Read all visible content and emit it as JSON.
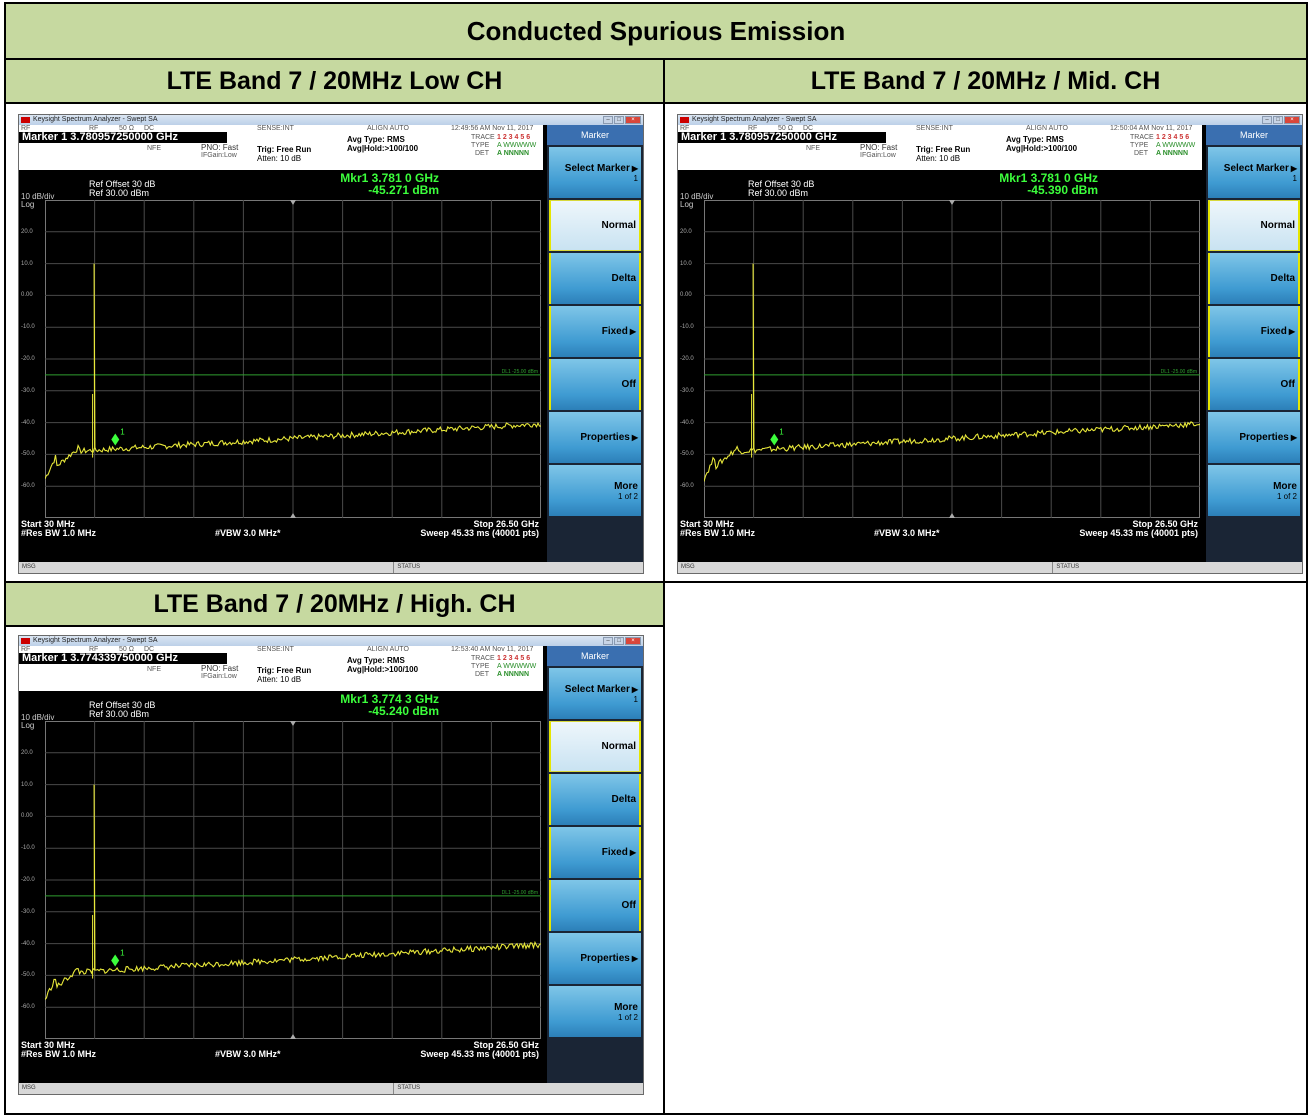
{
  "report_title": "Conducted Spurious Emission",
  "panels": [
    {
      "header": "LTE Band 7 / 20MHz Low CH",
      "sa": {
        "window_title": "Keysight Spectrum Analyzer - Swept SA",
        "rf": "RF",
        "impedance": "50 Ω",
        "coupling": "DC",
        "sense": "SENSE:INT",
        "align": "ALIGN AUTO",
        "timestamp": "12:49:56 AM Nov 11, 2017",
        "marker_line": "Marker 1 3.780957250000 GHz",
        "nfe": "NFE",
        "pno": "PNO: Fast",
        "ifgain": "IFGain:Low",
        "trig": "Trig: Free Run",
        "atten": "Atten: 10 dB",
        "avg_type": "Avg Type: RMS",
        "avg_hold": "Avg|Hold:>100/100",
        "trace_label": "TRACE",
        "type_label": "TYPE",
        "det_label": "DET",
        "trace_nums": "1 2 3 4 5 6",
        "type_vals": "A WWWWW",
        "det_vals": "A NNNNN",
        "ref_offset": "Ref Offset 30 dB",
        "scale": "10 dB/div",
        "ref_level": "Ref 30.00 dBm",
        "log": "Log",
        "mkr_freq": "Mkr1 3.781 0 GHz",
        "mkr_amp": "-45.271 dBm",
        "dl_label": "DL1 -25.00 dBm",
        "y_ticks": [
          "20.0",
          "10.0",
          "0.00",
          "-10.0",
          "-20.0",
          "-30.0",
          "-40.0",
          "-50.0",
          "-60.0"
        ],
        "start": "Start 30 MHz",
        "rbw": "#Res BW 1.0 MHz",
        "vbw": "#VBW 3.0 MHz*",
        "stop": "Stop 26.50 GHz",
        "sweep": "Sweep  45.33 ms (40001 pts)",
        "status_left": "MSG",
        "status_mid": "STATUS",
        "menu_title": "Marker",
        "menu": [
          {
            "label": "Select Marker",
            "sub": "1"
          },
          {
            "label": "Normal",
            "sub": ""
          },
          {
            "label": "Delta",
            "sub": ""
          },
          {
            "label": "Fixed",
            "sub": ""
          },
          {
            "label": "Off",
            "sub": ""
          },
          {
            "label": "Properties",
            "sub": ""
          },
          {
            "label": "More",
            "sub": "1 of 2"
          }
        ]
      }
    },
    {
      "header": "LTE Band 7 / 20MHz / Mid. CH",
      "sa": {
        "window_title": "Keysight Spectrum Analyzer - Swept SA",
        "rf": "RF",
        "impedance": "50 Ω",
        "coupling": "DC",
        "sense": "SENSE:INT",
        "align": "ALIGN AUTO",
        "timestamp": "12:50:04 AM Nov 11, 2017",
        "marker_line": "Marker 1 3.780957250000 GHz",
        "nfe": "NFE",
        "pno": "PNO: Fast",
        "ifgain": "IFGain:Low",
        "trig": "Trig: Free Run",
        "atten": "Atten: 10 dB",
        "avg_type": "Avg Type: RMS",
        "avg_hold": "Avg|Hold:>100/100",
        "trace_label": "TRACE",
        "type_label": "TYPE",
        "det_label": "DET",
        "trace_nums": "1 2 3 4 5 6",
        "type_vals": "A WWWWW",
        "det_vals": "A NNNNN",
        "ref_offset": "Ref Offset 30 dB",
        "scale": "10 dB/div",
        "ref_level": "Ref 30.00 dBm",
        "log": "Log",
        "mkr_freq": "Mkr1 3.781 0 GHz",
        "mkr_amp": "-45.390 dBm",
        "dl_label": "DL1 -25.00 dBm",
        "y_ticks": [
          "20.0",
          "10.0",
          "0.00",
          "-10.0",
          "-20.0",
          "-30.0",
          "-40.0",
          "-50.0",
          "-60.0"
        ],
        "start": "Start 30 MHz",
        "rbw": "#Res BW 1.0 MHz",
        "vbw": "#VBW 3.0 MHz*",
        "stop": "Stop 26.50 GHz",
        "sweep": "Sweep  45.33 ms (40001 pts)",
        "status_left": "MSG",
        "status_mid": "STATUS",
        "menu_title": "Marker",
        "menu": [
          {
            "label": "Select Marker",
            "sub": "1"
          },
          {
            "label": "Normal",
            "sub": ""
          },
          {
            "label": "Delta",
            "sub": ""
          },
          {
            "label": "Fixed",
            "sub": ""
          },
          {
            "label": "Off",
            "sub": ""
          },
          {
            "label": "Properties",
            "sub": ""
          },
          {
            "label": "More",
            "sub": "1 of 2"
          }
        ]
      }
    },
    {
      "header": "LTE Band 7 / 20MHz / High. CH",
      "sa": {
        "window_title": "Keysight Spectrum Analyzer - Swept SA",
        "rf": "RF",
        "impedance": "50 Ω",
        "coupling": "DC",
        "sense": "SENSE:INT",
        "align": "ALIGN AUTO",
        "timestamp": "12:53:40 AM Nov 11, 2017",
        "marker_line": "Marker 1 3.774339750000 GHz",
        "nfe": "NFE",
        "pno": "PNO: Fast",
        "ifgain": "IFGain:Low",
        "trig": "Trig: Free Run",
        "atten": "Atten: 10 dB",
        "avg_type": "Avg Type: RMS",
        "avg_hold": "Avg|Hold:>100/100",
        "trace_label": "TRACE",
        "type_label": "TYPE",
        "det_label": "DET",
        "trace_nums": "1 2 3 4 5 6",
        "type_vals": "A WWWWW",
        "det_vals": "A NNNNN",
        "ref_offset": "Ref Offset 30 dB",
        "scale": "10 dB/div",
        "ref_level": "Ref 30.00 dBm",
        "log": "Log",
        "mkr_freq": "Mkr1 3.774 3 GHz",
        "mkr_amp": "-45.240 dBm",
        "dl_label": "DL1 -25.00 dBm",
        "y_ticks": [
          "20.0",
          "10.0",
          "0.00",
          "-10.0",
          "-20.0",
          "-30.0",
          "-40.0",
          "-50.0",
          "-60.0"
        ],
        "start": "Start 30 MHz",
        "rbw": "#Res BW 1.0 MHz",
        "vbw": "#VBW 3.0 MHz*",
        "stop": "Stop 26.50 GHz",
        "sweep": "Sweep  45.33 ms (40001 pts)",
        "status_left": "MSG",
        "status_mid": "STATUS",
        "menu_title": "Marker",
        "menu": [
          {
            "label": "Select Marker",
            "sub": "1"
          },
          {
            "label": "Normal",
            "sub": ""
          },
          {
            "label": "Delta",
            "sub": ""
          },
          {
            "label": "Fixed",
            "sub": ""
          },
          {
            "label": "Off",
            "sub": ""
          },
          {
            "label": "Properties",
            "sub": ""
          },
          {
            "label": "More",
            "sub": "1 of 2"
          }
        ]
      }
    }
  ],
  "colors": {
    "header_bg": "#c6d9a0",
    "trace": "#e8e83a",
    "display_line": "#2f9e2f",
    "marker": "#3cff3c",
    "softkey": "#3f9bd2"
  }
}
